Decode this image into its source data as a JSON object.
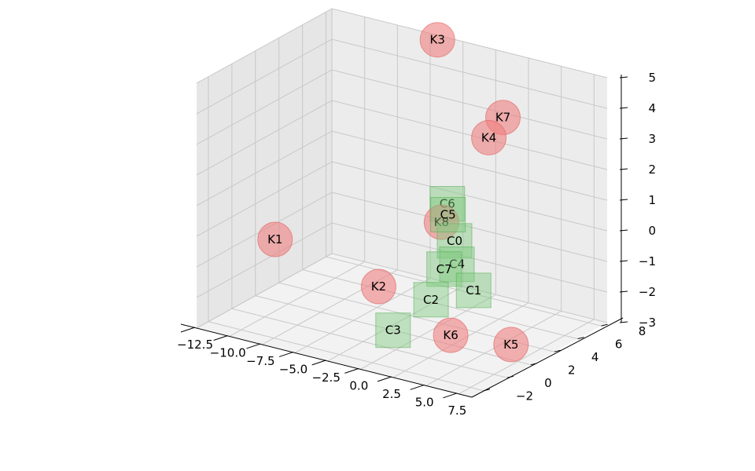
{
  "chart_data": {
    "type": "scatter",
    "projection": "3d",
    "title": "",
    "xlabel": "",
    "ylabel": "",
    "zlabel": "",
    "grid": true,
    "legend": "none",
    "xlim": [
      -12.5,
      8.5
    ],
    "ylim": [
      -3,
      8.5
    ],
    "zlim": [
      -3,
      5
    ],
    "x_ticks": [
      "−12.5",
      "−10.0",
      "−7.5",
      "−5.0",
      "−2.5",
      "0.0",
      "2.5",
      "5.0",
      "7.5"
    ],
    "x_tick_values": [
      -12.5,
      -10,
      -7.5,
      -5,
      -2.5,
      0,
      2.5,
      5,
      7.5
    ],
    "y_ticks": [
      "−2",
      "0",
      "2",
      "4",
      "6",
      "8"
    ],
    "y_tick_values": [
      -2,
      0,
      2,
      4,
      6,
      8
    ],
    "z_ticks": [
      "−3",
      "−2",
      "−1",
      "0",
      "1",
      "2",
      "3",
      "4",
      "5"
    ],
    "z_tick_values": [
      -3,
      -2,
      -1,
      0,
      1,
      2,
      3,
      4,
      5
    ],
    "series": [
      {
        "marker": "circle",
        "color": "#f08080",
        "points": [
          {
            "label": "K1",
            "x": -11.0,
            "y": 2.0,
            "z": -1.0
          },
          {
            "label": "K2",
            "x": -4.0,
            "y": 3.0,
            "z": -2.0
          },
          {
            "label": "K3",
            "x": -4.0,
            "y": 8.0,
            "z": 5.0
          },
          {
            "label": "K4",
            "x": 8.0,
            "y": -1.0,
            "z": 5.0
          },
          {
            "label": "K5",
            "x": 7.0,
            "y": 2.0,
            "z": -2.5
          },
          {
            "label": "K6",
            "x": 1.5,
            "y": 3.0,
            "z": -3.0
          },
          {
            "label": "K7",
            "x": 1.0,
            "y": 8.0,
            "z": 3.0
          },
          {
            "label": "K8",
            "x": -1.0,
            "y": 5.0,
            "z": 0.0
          }
        ]
      },
      {
        "marker": "square",
        "color": "#7fc97f",
        "points": [
          {
            "label": "C0",
            "x": 0.0,
            "y": 5.0,
            "z": -0.5
          },
          {
            "label": "C1",
            "x": 2.8,
            "y": 3.5,
            "z": -1.5
          },
          {
            "label": "C2",
            "x": 0.0,
            "y": 3.0,
            "z": -2.0
          },
          {
            "label": "C3",
            "x": -2.0,
            "y": 2.0,
            "z": -3.0
          },
          {
            "label": "C4",
            "x": 0.9,
            "y": 4.2,
            "z": -1.0
          },
          {
            "label": "C5",
            "x": -0.5,
            "y": 5.0,
            "z": 0.3
          },
          {
            "label": "C6",
            "x": -1.0,
            "y": 5.5,
            "z": 0.5
          },
          {
            "label": "C7",
            "x": 0.1,
            "y": 4.0,
            "z": -1.2
          }
        ]
      }
    ]
  }
}
